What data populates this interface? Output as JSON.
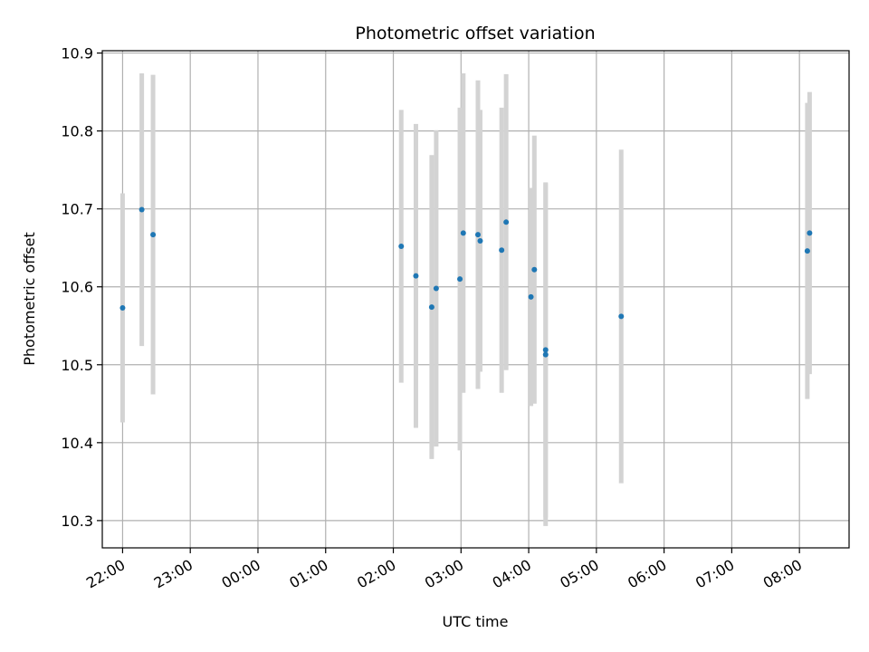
{
  "chart_data": {
    "type": "scatter",
    "title": "Photometric offset variation",
    "xlabel": "UTC time",
    "ylabel": "Photometric offset",
    "x_is_time": true,
    "xlim": [
      "21:42",
      "08:44"
    ],
    "ylim": [
      10.265,
      10.903
    ],
    "x_ticks": [
      "22:00",
      "23:00",
      "00:00",
      "01:00",
      "02:00",
      "03:00",
      "04:00",
      "05:00",
      "06:00",
      "07:00",
      "08:00"
    ],
    "y_ticks": [
      10.3,
      10.4,
      10.5,
      10.6,
      10.7,
      10.8,
      10.9
    ],
    "grid": true,
    "marker_color": "#1f77b4",
    "errorbar_color": "#d3d3d3",
    "points": [
      {
        "x": "22:00",
        "y": 10.573,
        "yerr": 0.147
      },
      {
        "x": "22:17",
        "y": 10.699,
        "yerr": 0.175
      },
      {
        "x": "22:27",
        "y": 10.667,
        "yerr": 0.205
      },
      {
        "x": "02:07",
        "y": 10.652,
        "yerr": 0.175
      },
      {
        "x": "02:20",
        "y": 10.614,
        "yerr": 0.195
      },
      {
        "x": "02:34",
        "y": 10.574,
        "yerr": 0.195
      },
      {
        "x": "02:38",
        "y": 10.598,
        "yerr": 0.203
      },
      {
        "x": "02:59",
        "y": 10.61,
        "yerr": 0.22
      },
      {
        "x": "03:02",
        "y": 10.669,
        "yerr": 0.205
      },
      {
        "x": "03:15",
        "y": 10.667,
        "yerr": 0.198
      },
      {
        "x": "03:17",
        "y": 10.659,
        "yerr": 0.168
      },
      {
        "x": "03:36",
        "y": 10.647,
        "yerr": 0.183
      },
      {
        "x": "03:40",
        "y": 10.683,
        "yerr": 0.19
      },
      {
        "x": "04:02",
        "y": 10.587,
        "yerr": 0.14
      },
      {
        "x": "04:05",
        "y": 10.622,
        "yerr": 0.172
      },
      {
        "x": "04:15",
        "y": 10.519,
        "yerr": 0.215
      },
      {
        "x": "04:15",
        "y": 10.513,
        "yerr": 0.22
      },
      {
        "x": "05:22",
        "y": 10.562,
        "yerr": 0.214
      },
      {
        "x": "08:07",
        "y": 10.646,
        "yerr": 0.19
      },
      {
        "x": "08:09",
        "y": 10.669,
        "yerr": 0.181
      }
    ]
  }
}
